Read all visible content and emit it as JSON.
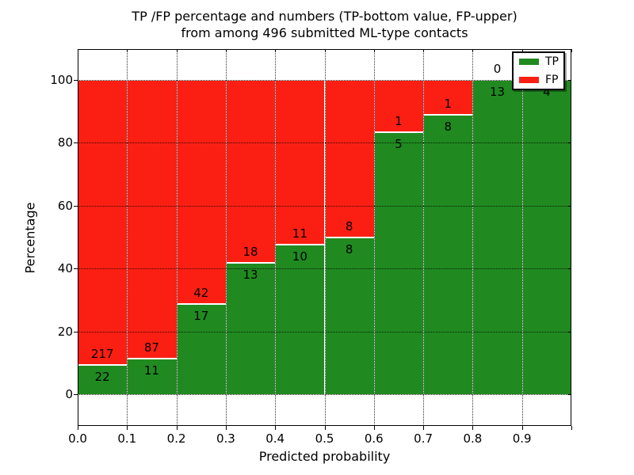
{
  "title": {
    "line1": "TP /FP percentage and numbers (TP-bottom value, FP-upper)",
    "line2": "from among 496 submitted ML-type contacts"
  },
  "chart_data": {
    "type": "bar",
    "subtype": "stacked-percentage",
    "title": "TP /FP percentage and numbers (TP-bottom value, FP-upper)\nfrom among 496 submitted ML-type contacts",
    "xlabel": "Predicted probability",
    "ylabel": "Percentage",
    "categories": [
      "0.0-0.1",
      "0.1-0.2",
      "0.2-0.3",
      "0.3-0.4",
      "0.4-0.5",
      "0.5-0.6",
      "0.6-0.7",
      "0.7-0.8",
      "0.8-0.9",
      "0.9-1.0"
    ],
    "series": [
      {
        "name": "TP",
        "color": "#208a20",
        "values": [
          22,
          11,
          17,
          13,
          10,
          8,
          5,
          8,
          13,
          4
        ]
      },
      {
        "name": "FP",
        "color": "#fb1f13",
        "values": [
          217,
          87,
          42,
          18,
          11,
          8,
          1,
          1,
          0,
          0
        ]
      }
    ],
    "total_contacts": 496,
    "xticks": [
      "0.0",
      "0.1",
      "0.2",
      "0.3",
      "0.4",
      "0.5",
      "0.6",
      "0.7",
      "0.8",
      "0.9"
    ],
    "yticks": [
      0,
      20,
      40,
      60,
      80,
      100
    ],
    "xlim": [
      0.0,
      1.0
    ],
    "ylim_percent": [
      0,
      100
    ],
    "grid": "dotted",
    "legend_position": "upper-right",
    "bar_label_note": "TP count below boundary, FP count above boundary"
  }
}
